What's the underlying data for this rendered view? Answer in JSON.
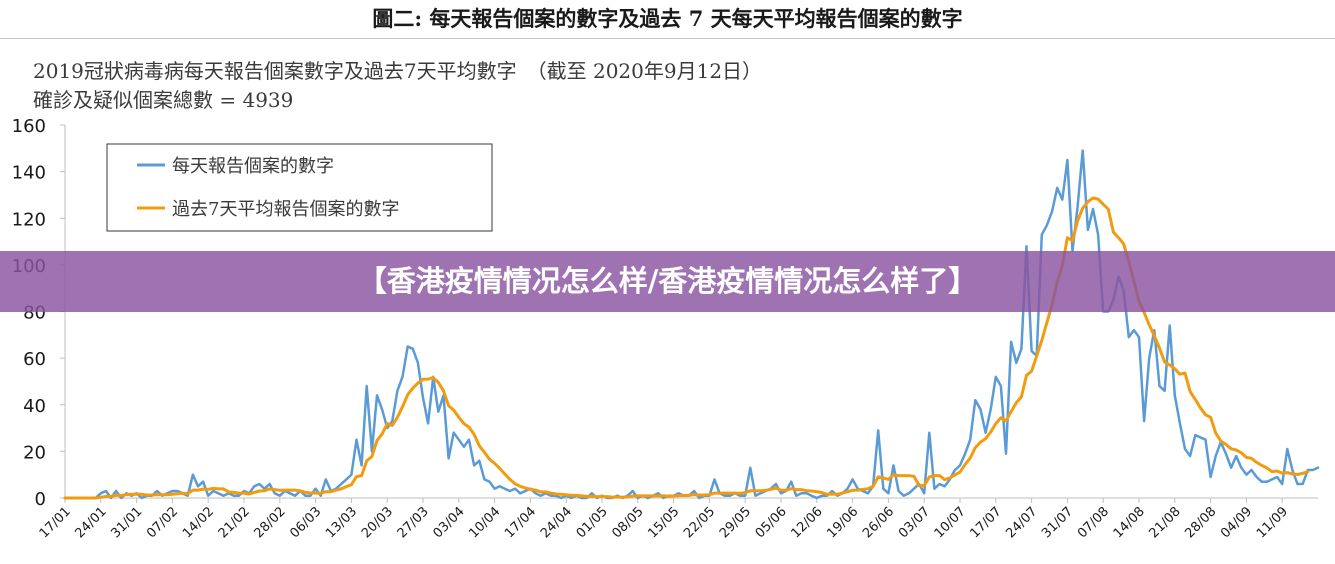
{
  "figure_title": "圖二: 每天報告個案的數字及過去 7 天每天平均報告個案的數字",
  "banner_text": "【香港疫情情况怎么样/香港疫情情况怎么样了】",
  "colors": {
    "daily": "#5b9bd5",
    "avg": "#f29b0e",
    "banner": "#8a54a0"
  },
  "chart_data": {
    "type": "line",
    "title": "2019冠狀病毒病每天報告個案數字及過去7天平均數字　（截至 2020年9月12日）",
    "subtitle": "確診及疑似個案總數 = 4939",
    "xlabel": "",
    "ylabel": "",
    "ylim": [
      0,
      160
    ],
    "yticks": [
      0,
      20,
      40,
      60,
      80,
      100,
      120,
      140,
      160
    ],
    "grid": false,
    "legend_position": "top-left",
    "x_start": "2020-01-17",
    "x_end": "2020-09-12",
    "x_tick_labels": [
      "17/01",
      "24/01",
      "31/01",
      "07/02",
      "14/02",
      "21/02",
      "28/02",
      "06/03",
      "13/03",
      "20/03",
      "27/03",
      "03/04",
      "10/04",
      "17/04",
      "24/04",
      "01/05",
      "08/05",
      "15/05",
      "22/05",
      "29/05",
      "05/06",
      "12/06",
      "19/06",
      "26/06",
      "03/07",
      "10/07",
      "17/07",
      "24/07",
      "31/07",
      "07/08",
      "14/08",
      "21/08",
      "28/08",
      "04/09",
      "11/09"
    ],
    "series": [
      {
        "name": "每天報告個案的數字",
        "color": "#5b9bd5",
        "values": [
          0,
          0,
          0,
          0,
          0,
          0,
          0,
          2,
          3,
          0,
          3,
          0,
          2,
          1,
          2,
          0,
          1,
          1,
          3,
          1,
          2,
          3,
          3,
          2,
          1,
          10,
          5,
          7,
          1,
          3,
          2,
          1,
          2,
          1,
          1,
          3,
          2,
          5,
          6,
          4,
          6,
          2,
          1,
          3,
          2,
          1,
          3,
          1,
          1,
          4,
          1,
          8,
          3,
          4,
          6,
          8,
          10,
          25,
          14,
          48,
          20,
          44,
          38,
          30,
          33,
          46,
          52,
          65,
          64,
          58,
          43,
          32,
          52,
          37,
          44,
          17,
          28,
          25,
          22,
          25,
          14,
          16,
          8,
          7,
          4,
          5,
          4,
          3,
          4,
          2,
          3,
          4,
          2,
          1,
          2,
          1,
          1,
          0,
          1,
          0,
          1,
          0,
          0,
          2,
          0,
          1,
          0,
          0,
          1,
          0,
          1,
          3,
          0,
          1,
          0,
          1,
          2,
          0,
          1,
          1,
          2,
          1,
          1,
          3,
          0,
          1,
          1,
          8,
          2,
          1,
          1,
          2,
          1,
          1,
          13,
          1,
          2,
          3,
          4,
          6,
          2,
          3,
          7,
          1,
          2,
          2,
          1,
          0,
          1,
          1,
          3,
          1,
          2,
          4,
          8,
          4,
          3,
          2,
          5,
          29,
          4,
          2,
          14,
          3,
          1,
          2,
          4,
          6,
          2,
          28,
          4,
          6,
          5,
          8,
          12,
          14,
          19,
          25,
          42,
          38,
          28,
          38,
          52,
          48,
          19,
          67,
          58,
          64,
          108,
          63,
          61,
          113,
          117,
          123,
          133,
          128,
          145,
          106,
          125,
          149,
          115,
          124,
          113,
          80,
          80,
          85,
          95,
          89,
          69,
          72,
          69,
          33,
          60,
          72,
          48,
          46,
          74,
          44,
          32,
          21,
          18,
          27,
          26,
          25,
          9,
          18,
          24,
          19,
          13,
          18,
          13,
          10,
          12,
          9,
          7,
          7,
          8,
          9,
          6,
          21,
          12,
          6,
          6,
          12,
          12,
          13
        ]
      },
      {
        "name": "過去7天平均報告個案的數字",
        "color": "#f29b0e",
        "values": [
          0,
          0,
          0,
          0,
          0,
          0,
          0,
          0.3,
          0.7,
          0.7,
          1.1,
          1.1,
          1.4,
          1.6,
          1.6,
          1.6,
          1.3,
          1.3,
          1.4,
          1.4,
          1.4,
          1.6,
          1.9,
          2,
          1.9,
          3.4,
          3.4,
          3.8,
          3.7,
          4.1,
          3.9,
          3.9,
          2.6,
          2.4,
          2.1,
          2.1,
          1.7,
          2.4,
          3,
          3.1,
          3.9,
          3.6,
          3.3,
          3.4,
          3.4,
          3.4,
          3.1,
          2.4,
          2.2,
          2.1,
          2,
          2.7,
          2.7,
          3.4,
          3.9,
          4.9,
          5.7,
          9.2,
          9.6,
          15.9,
          17.8,
          24.7,
          27.4,
          31.9,
          31.1,
          34.6,
          39.1,
          44.3,
          47.1,
          49.3,
          50.9,
          51,
          51.6,
          49.6,
          46,
          39.6,
          37.7,
          34.6,
          31.9,
          30.4,
          27.3,
          22.4,
          19.6,
          16.6,
          14.9,
          12.7,
          10.3,
          8,
          6.1,
          5,
          4.3,
          3.7,
          3.4,
          2.6,
          2.6,
          2.1,
          1.7,
          1.6,
          1.4,
          1.1,
          1.1,
          0.9,
          0.7,
          0.7,
          0.6,
          0.6,
          0.6,
          0.4,
          0.4,
          0.4,
          0.4,
          0.9,
          0.9,
          0.9,
          0.9,
          0.9,
          0.9,
          1,
          0.7,
          0.9,
          1,
          1.1,
          1.1,
          1.4,
          1.3,
          1.3,
          1.4,
          2.1,
          2.1,
          2.1,
          2.1,
          2.1,
          2,
          2.3,
          3.1,
          3.1,
          3.1,
          3.3,
          3.7,
          4.3,
          3.3,
          3.4,
          4,
          3.6,
          3.6,
          3.1,
          3,
          2.7,
          2.3,
          1.6,
          1.7,
          1.6,
          2.1,
          2.7,
          3.3,
          3.4,
          3.7,
          4,
          5,
          9.1,
          8.6,
          8,
          9.9,
          9.6,
          9.6,
          9.6,
          9.3,
          5.3,
          5.3,
          9,
          9.6,
          9.6,
          7.9,
          8.6,
          9.9,
          11.1,
          14.4,
          17.1,
          21.6,
          24,
          25.4,
          28.3,
          31.9,
          34.4,
          33.1,
          37,
          40.9,
          43.4,
          52.6,
          54.4,
          60.9,
          67.6,
          75.3,
          83,
          92.6,
          99.6,
          111.7,
          110.3,
          118.9,
          124.3,
          127.1,
          128.7,
          128.2,
          126,
          123.9,
          114,
          111.7,
          108.9,
          101.4,
          93,
          84.4,
          79.6,
          74.3,
          69.6,
          64.3,
          58.3,
          57.1,
          55.4,
          53.1,
          53.6,
          45.7,
          42.3,
          38.7,
          35.7,
          34.6,
          27.9,
          24.4,
          23,
          21.1,
          20.6,
          19.4,
          17.4,
          17,
          15.3,
          14,
          12.9,
          11.3,
          11.6,
          10.7,
          10.9,
          10.3,
          10.1,
          10.6,
          11.3
        ]
      }
    ]
  }
}
